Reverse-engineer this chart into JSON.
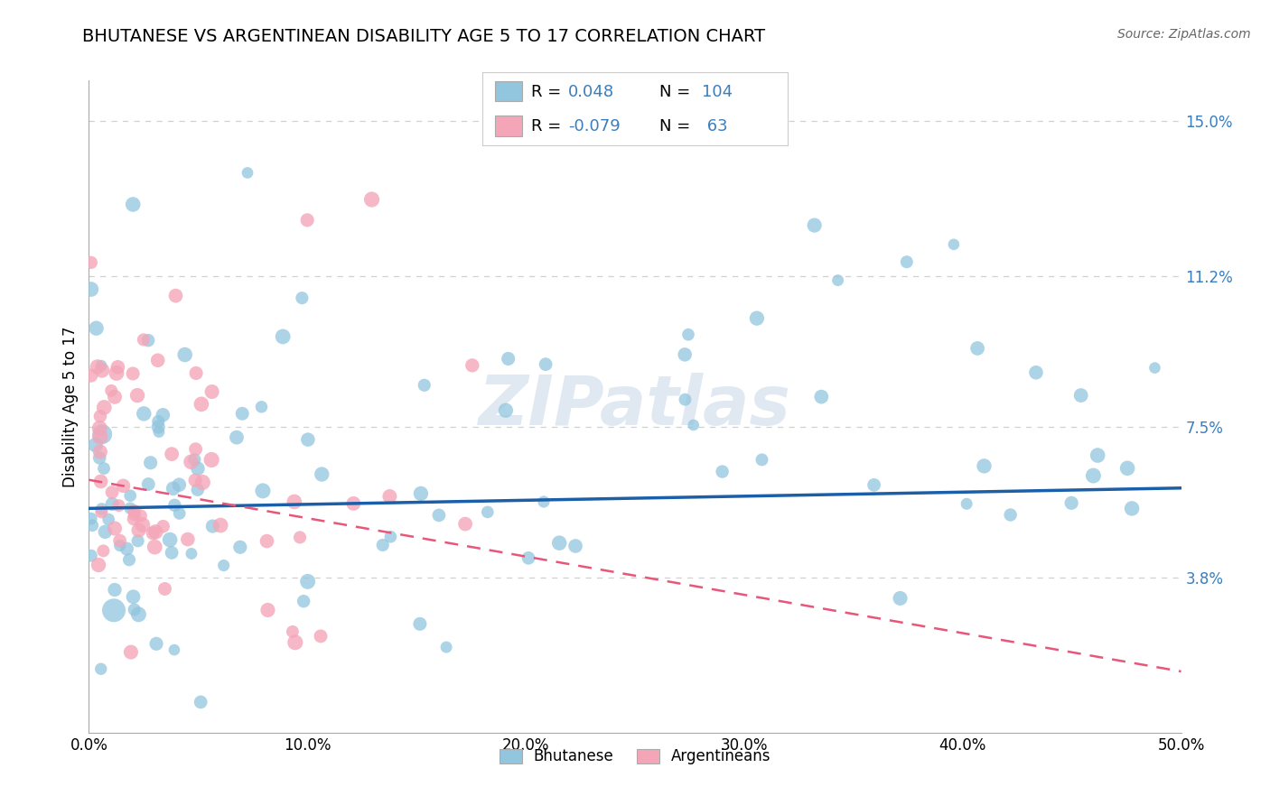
{
  "title": "BHUTANESE VS ARGENTINEAN DISABILITY AGE 5 TO 17 CORRELATION CHART",
  "source": "Source: ZipAtlas.com",
  "ylabel": "Disability Age 5 to 17",
  "xlim": [
    0.0,
    0.5
  ],
  "ylim": [
    0.0,
    0.16
  ],
  "xtick_vals": [
    0.0,
    0.1,
    0.2,
    0.3,
    0.4,
    0.5
  ],
  "xticklabels": [
    "0.0%",
    "10.0%",
    "20.0%",
    "30.0%",
    "40.0%",
    "50.0%"
  ],
  "ytick_right_vals": [
    0.038,
    0.075,
    0.112,
    0.15
  ],
  "ytick_right_labels": [
    "3.8%",
    "7.5%",
    "11.2%",
    "15.0%"
  ],
  "watermark": "ZIPatlas",
  "blue_color": "#92c5de",
  "pink_color": "#f4a6b8",
  "trend_blue_color": "#1a5fa8",
  "trend_pink_color": "#e8567a",
  "right_axis_color": "#3a7ebf",
  "background_color": "#ffffff",
  "grid_color": "#d0d0d0",
  "blue_trend_start_y": 0.055,
  "blue_trend_end_y": 0.06,
  "pink_trend_start_y": 0.062,
  "pink_trend_end_y": 0.015,
  "legend_r1_label": "R = ",
  "legend_r1_val": " 0.048",
  "legend_n1_label": "N = ",
  "legend_n1_val": "104",
  "legend_r2_label": "R = ",
  "legend_r2_val": "-0.079",
  "legend_n2_label": "N = ",
  "legend_n2_val": " 63"
}
